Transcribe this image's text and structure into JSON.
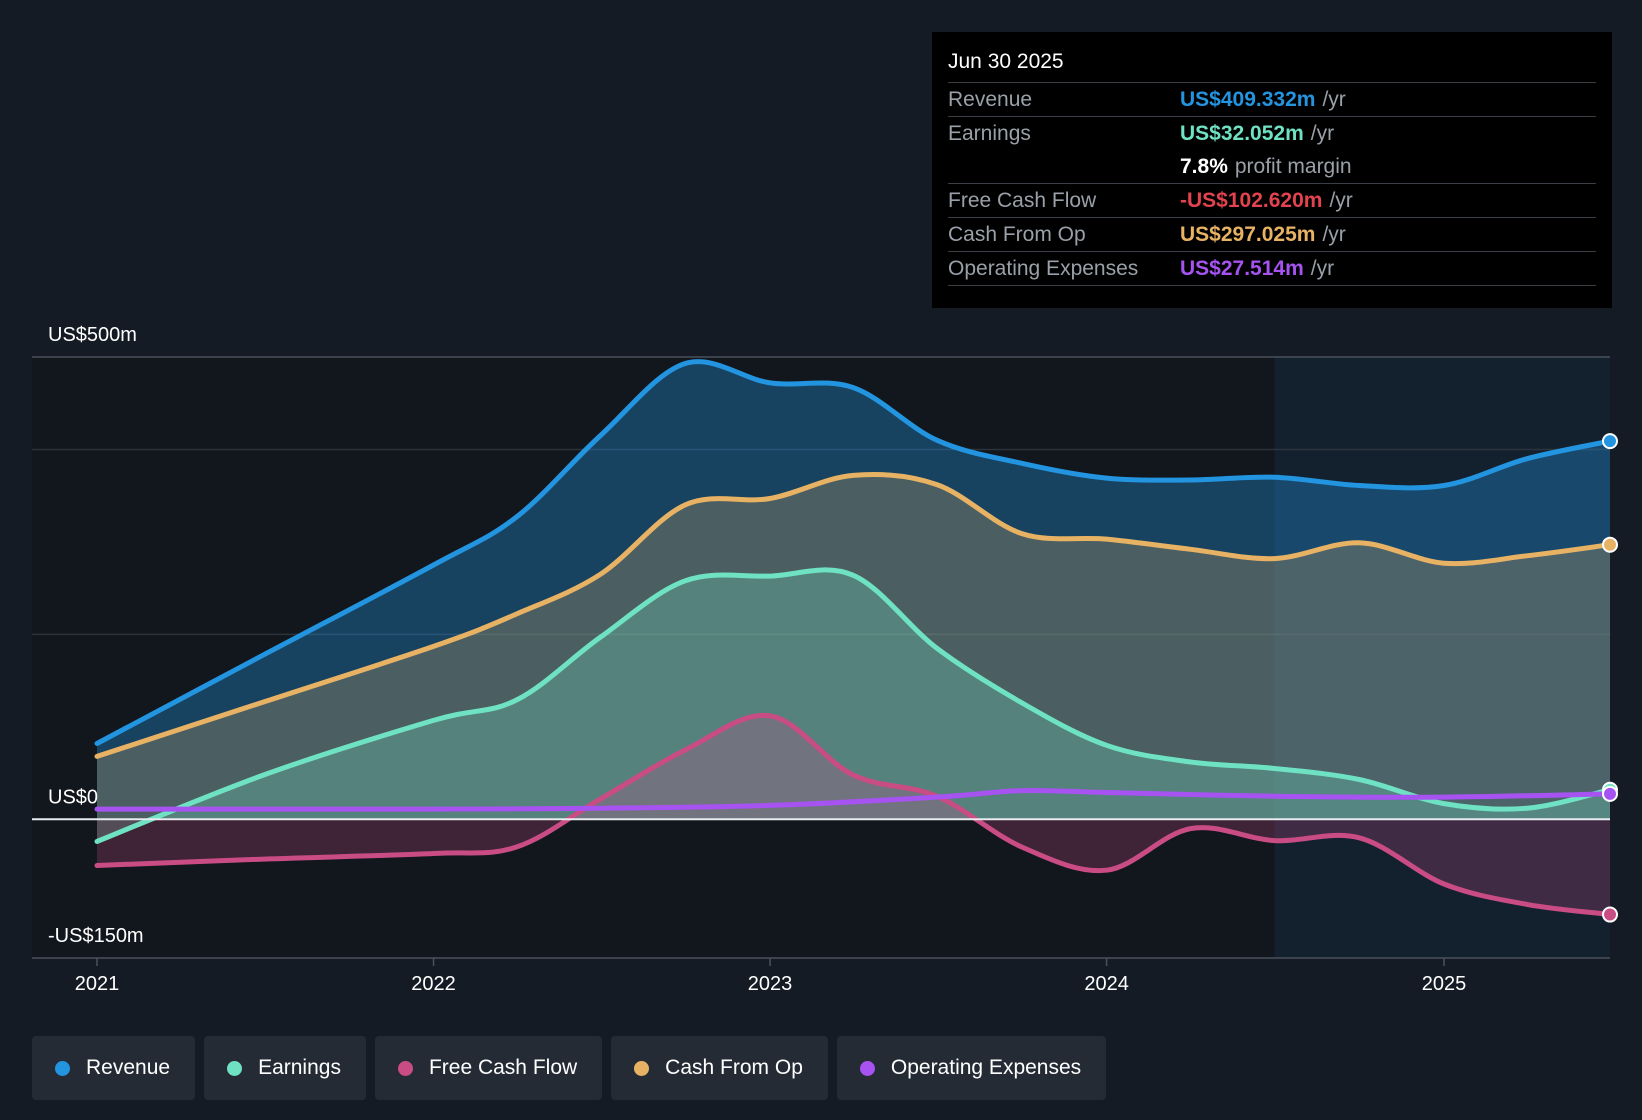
{
  "colors": {
    "revenue": "#2394df",
    "earnings": "#6ee2c2",
    "free_cash_flow": "#c94c85",
    "cash_from_op": "#e8b264",
    "operating_expenses": "#a653f1",
    "negative_value": "#e2434e",
    "background": "#151b24"
  },
  "tooltip": {
    "date": "Jun 30 2025",
    "rows": [
      {
        "label": "Revenue",
        "value": "US$409.332m",
        "unit": "/yr",
        "color": "#2394df"
      },
      {
        "label": "Earnings",
        "value": "US$32.052m",
        "unit": "/yr",
        "color": "#6ee2c2"
      },
      {
        "label": "",
        "value": "7.8%",
        "unit": "profit margin",
        "color": "#ffffff"
      },
      {
        "label": "Free Cash Flow",
        "value": "-US$102.620m",
        "unit": "/yr",
        "color": "#e2434e"
      },
      {
        "label": "Cash From Op",
        "value": "US$297.025m",
        "unit": "/yr",
        "color": "#e8b264"
      },
      {
        "label": "Operating Expenses",
        "value": "US$27.514m",
        "unit": "/yr",
        "color": "#a653f1"
      }
    ]
  },
  "legend": [
    {
      "label": "Revenue",
      "color": "#2394df"
    },
    {
      "label": "Earnings",
      "color": "#6ee2c2"
    },
    {
      "label": "Free Cash Flow",
      "color": "#c94c85"
    },
    {
      "label": "Cash From Op",
      "color": "#e8b264"
    },
    {
      "label": "Operating Expenses",
      "color": "#a653f1"
    }
  ],
  "chart_data": {
    "type": "area",
    "y_axis_labels": [
      {
        "label": "US$500m",
        "value": 500
      },
      {
        "label": "US$0",
        "value": 0
      },
      {
        "label": "-US$150m",
        "value": -150
      }
    ],
    "ylim": [
      -150,
      500
    ],
    "xlim": [
      "2021-01-01",
      "2025-06-30"
    ],
    "x_ticks": [
      {
        "label": "2021",
        "date": "2021-01-01"
      },
      {
        "label": "2022",
        "date": "2022-01-01"
      },
      {
        "label": "2023",
        "date": "2023-01-01"
      },
      {
        "label": "2024",
        "date": "2024-01-01"
      },
      {
        "label": "2025",
        "date": "2025-01-01"
      }
    ],
    "gridlines": [
      500,
      400,
      200
    ],
    "highlight_start": "2024-07-01",
    "series": [
      {
        "name": "Revenue",
        "key": "revenue",
        "color": "#2394df",
        "fill_opacity": 0.35,
        "points": [
          [
            "2021-01-01",
            82
          ],
          [
            "2021-07-01",
            178
          ],
          [
            "2022-01-01",
            275
          ],
          [
            "2022-04-01",
            327
          ],
          [
            "2022-07-01",
            415
          ],
          [
            "2022-10-01",
            493
          ],
          [
            "2023-01-01",
            472
          ],
          [
            "2023-04-01",
            467
          ],
          [
            "2023-07-01",
            410
          ],
          [
            "2023-10-01",
            385
          ],
          [
            "2024-01-01",
            369
          ],
          [
            "2024-04-01",
            367
          ],
          [
            "2024-07-01",
            370
          ],
          [
            "2024-10-01",
            361
          ],
          [
            "2025-01-01",
            361
          ],
          [
            "2025-04-01",
            390
          ],
          [
            "2025-06-30",
            409
          ]
        ]
      },
      {
        "name": "Cash From Op",
        "key": "cash_from_op",
        "color": "#e8b264",
        "fill_opacity": 0.25,
        "points": [
          [
            "2021-01-01",
            68
          ],
          [
            "2021-07-01",
            127
          ],
          [
            "2022-01-01",
            187
          ],
          [
            "2022-04-01",
            222
          ],
          [
            "2022-07-01",
            265
          ],
          [
            "2022-10-01",
            340
          ],
          [
            "2023-01-01",
            347
          ],
          [
            "2023-04-01",
            372
          ],
          [
            "2023-07-01",
            362
          ],
          [
            "2023-10-01",
            309
          ],
          [
            "2024-01-01",
            303
          ],
          [
            "2024-04-01",
            292
          ],
          [
            "2024-07-01",
            282
          ],
          [
            "2024-10-01",
            299
          ],
          [
            "2025-01-01",
            277
          ],
          [
            "2025-04-01",
            285
          ],
          [
            "2025-06-30",
            297
          ]
        ]
      },
      {
        "name": "Earnings",
        "key": "earnings",
        "color": "#6ee2c2",
        "fill_opacity": 0.28,
        "points": [
          [
            "2021-01-01",
            -24
          ],
          [
            "2021-07-01",
            48
          ],
          [
            "2022-01-01",
            107
          ],
          [
            "2022-04-01",
            129
          ],
          [
            "2022-07-01",
            197
          ],
          [
            "2022-10-01",
            258
          ],
          [
            "2023-01-01",
            263
          ],
          [
            "2023-04-01",
            264
          ],
          [
            "2023-07-01",
            185
          ],
          [
            "2023-10-01",
            126
          ],
          [
            "2024-01-01",
            80
          ],
          [
            "2024-04-01",
            62
          ],
          [
            "2024-07-01",
            55
          ],
          [
            "2024-10-01",
            43
          ],
          [
            "2025-01-01",
            17
          ],
          [
            "2025-04-01",
            12
          ],
          [
            "2025-06-30",
            32
          ]
        ]
      },
      {
        "name": "Free Cash Flow",
        "key": "free_cash_flow",
        "color": "#c94c85",
        "fill_opacity": 0.25,
        "points": [
          [
            "2021-01-01",
            -50
          ],
          [
            "2021-07-01",
            -43
          ],
          [
            "2022-01-01",
            -37
          ],
          [
            "2022-04-01",
            -30
          ],
          [
            "2022-07-01",
            22
          ],
          [
            "2022-10-01",
            75
          ],
          [
            "2023-01-01",
            112
          ],
          [
            "2023-04-01",
            48
          ],
          [
            "2023-07-01",
            25
          ],
          [
            "2023-10-01",
            -30
          ],
          [
            "2024-01-01",
            -55
          ],
          [
            "2024-04-01",
            -10
          ],
          [
            "2024-07-01",
            -23
          ],
          [
            "2024-10-01",
            -20
          ],
          [
            "2025-01-01",
            -70
          ],
          [
            "2025-04-01",
            -92
          ],
          [
            "2025-06-30",
            -103
          ]
        ]
      },
      {
        "name": "Operating Expenses",
        "key": "operating_expenses",
        "color": "#a653f1",
        "fill_opacity": 0,
        "points": [
          [
            "2021-01-01",
            11
          ],
          [
            "2022-01-01",
            11
          ],
          [
            "2022-07-01",
            12
          ],
          [
            "2023-01-01",
            15
          ],
          [
            "2023-07-01",
            24
          ],
          [
            "2023-10-01",
            31
          ],
          [
            "2024-01-01",
            29
          ],
          [
            "2024-07-01",
            25
          ],
          [
            "2025-01-01",
            24
          ],
          [
            "2025-06-30",
            27.5
          ]
        ]
      }
    ]
  }
}
